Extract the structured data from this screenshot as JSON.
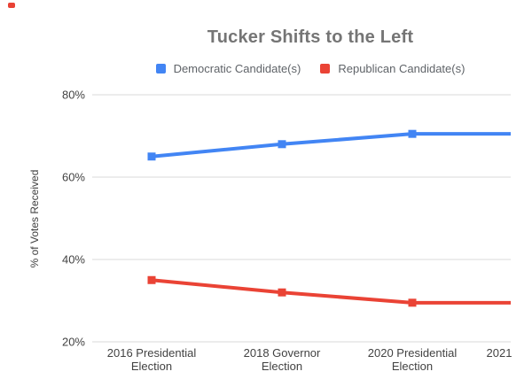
{
  "decorations": {
    "corner_dot_color": "#e94235"
  },
  "chart_data": {
    "type": "line",
    "title": "Tucker Shifts to the Left",
    "ylabel": "% of Votes Received",
    "xlabel": "",
    "categories": [
      {
        "lines": [
          "2016 Presidential",
          "Election"
        ]
      },
      {
        "lines": [
          "2018 Governor",
          "Election"
        ]
      },
      {
        "lines": [
          "2020 Presidential",
          "Election"
        ]
      },
      {
        "lines": [
          "2021"
        ]
      }
    ],
    "series": [
      {
        "name": "Democratic Candidate(s)",
        "color": "#4285f4",
        "values": [
          65,
          68,
          70.5,
          70.5
        ]
      },
      {
        "name": "Republican Candidate(s)",
        "color": "#ea4335",
        "values": [
          35,
          32,
          29.5,
          29.5
        ]
      }
    ],
    "ylim": [
      20,
      80
    ],
    "yticks": [
      {
        "value": 80,
        "label": "80%"
      },
      {
        "value": 60,
        "label": "60%"
      },
      {
        "value": 40,
        "label": "40%"
      },
      {
        "value": 20,
        "label": "20%"
      }
    ],
    "grid": true,
    "legend_position": "top",
    "marker": "square",
    "colors": {
      "title_text": "#757575",
      "legend_text": "#5f6368",
      "axis_text": "#424242",
      "gridline": "#dadada",
      "background": "#ffffff"
    }
  }
}
